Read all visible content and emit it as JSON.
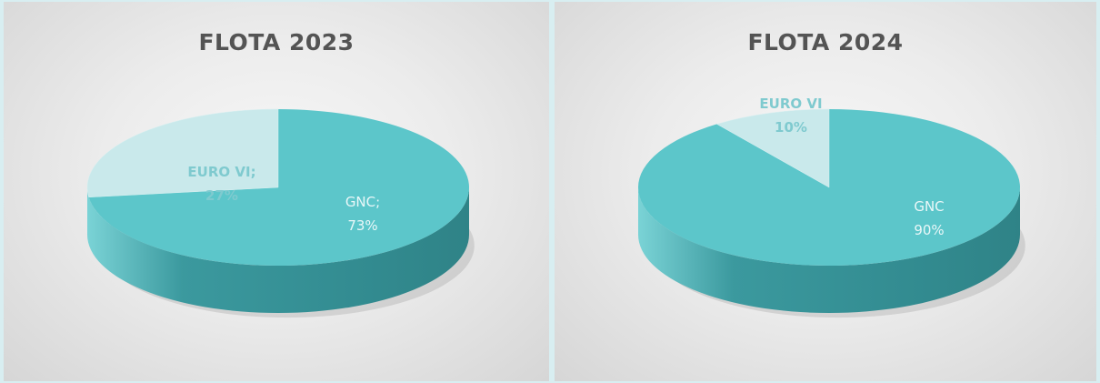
{
  "colors": {
    "main_slice_top": "#5cc6ca",
    "main_slice_side": "#3b999e",
    "minor_slice_top": "#c9e9eb",
    "minor_slice_side": "#9fd3d6",
    "main_label": "#e9f7f8",
    "minor_label": "#7fcacf"
  },
  "chart_data": [
    {
      "type": "pie",
      "title": "FLOTA 2023",
      "slices": [
        {
          "category": "GNC;",
          "value_label": "73%",
          "value": 73
        },
        {
          "category": "EURO VI;",
          "value_label": "27%",
          "value": 27
        }
      ]
    },
    {
      "type": "pie",
      "title": "FLOTA 2024",
      "slices": [
        {
          "category": "GNC",
          "value_label": "90%",
          "value": 90
        },
        {
          "category": "EURO VI",
          "value_label": "10%",
          "value": 10
        }
      ]
    }
  ]
}
